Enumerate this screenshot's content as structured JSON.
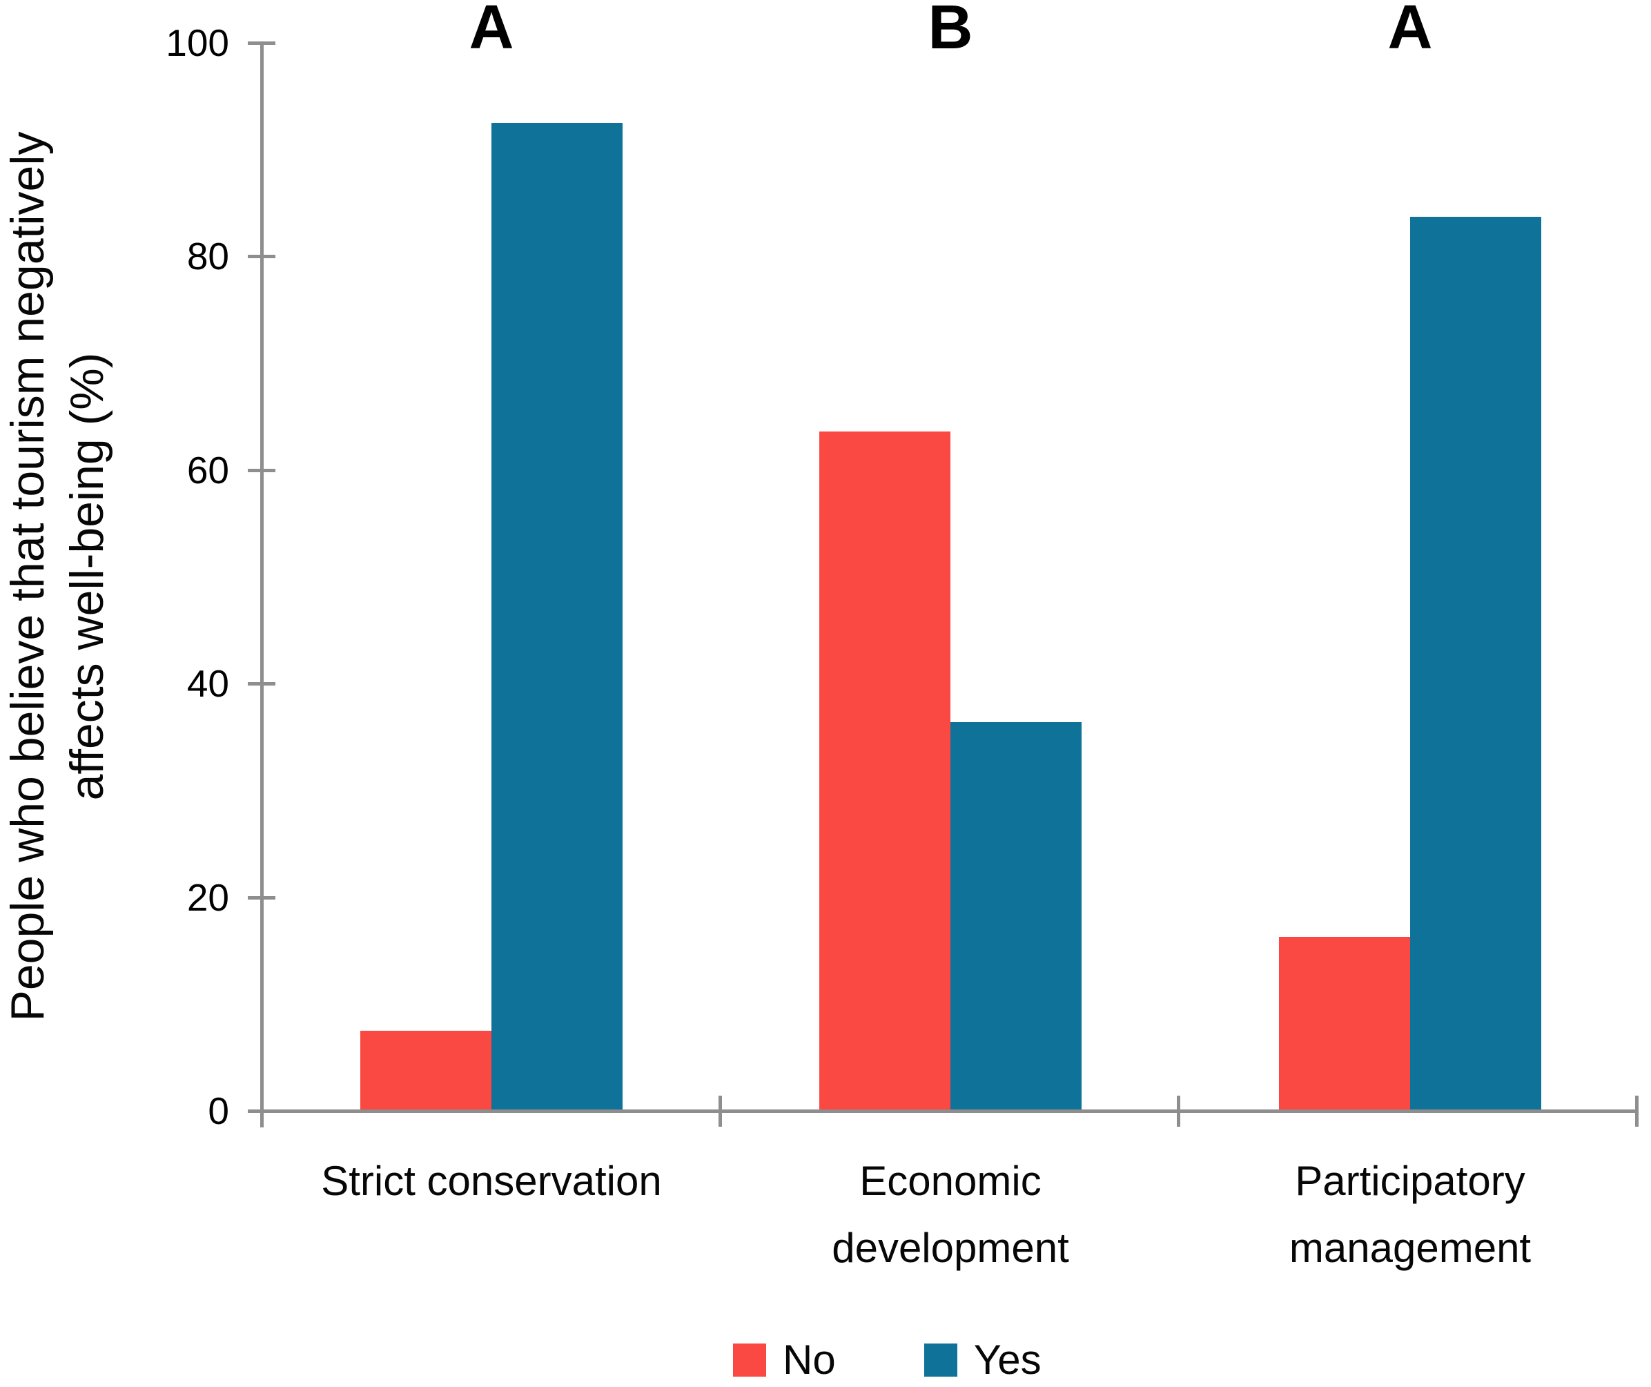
{
  "figure": {
    "background": "#ffffff",
    "axis_color": "#8e8e8e",
    "text_color": "#000000"
  },
  "chart_data": {
    "type": "bar",
    "title": "",
    "categories": [
      "Strict conservation",
      "Economic development",
      "Participatory management"
    ],
    "category_lines": [
      [
        "Strict conservation"
      ],
      [
        "Economic",
        "development"
      ],
      [
        "Participatory",
        "management"
      ]
    ],
    "group_letters": [
      "A",
      "B",
      "A"
    ],
    "series": [
      {
        "name": "No",
        "color": "#fa4843",
        "values": [
          7.5,
          63.6,
          16.3
        ]
      },
      {
        "name": "Yes",
        "color": "#0f7298",
        "values": [
          92.5,
          36.4,
          83.7
        ]
      }
    ],
    "xlabel": "",
    "ylabel": "People who believe that tourism negatively affects well-being (%)",
    "ylabel_lines": [
      "People who believe that tourism negatively",
      "affects well-being (%)"
    ],
    "ylim": [
      0,
      100
    ],
    "yticks": [
      "0",
      "20",
      "40",
      "60",
      "80",
      "100"
    ],
    "ytick_values": [
      0,
      20,
      40,
      60,
      80,
      100
    ],
    "grid": false,
    "legend_position": "bottom"
  }
}
